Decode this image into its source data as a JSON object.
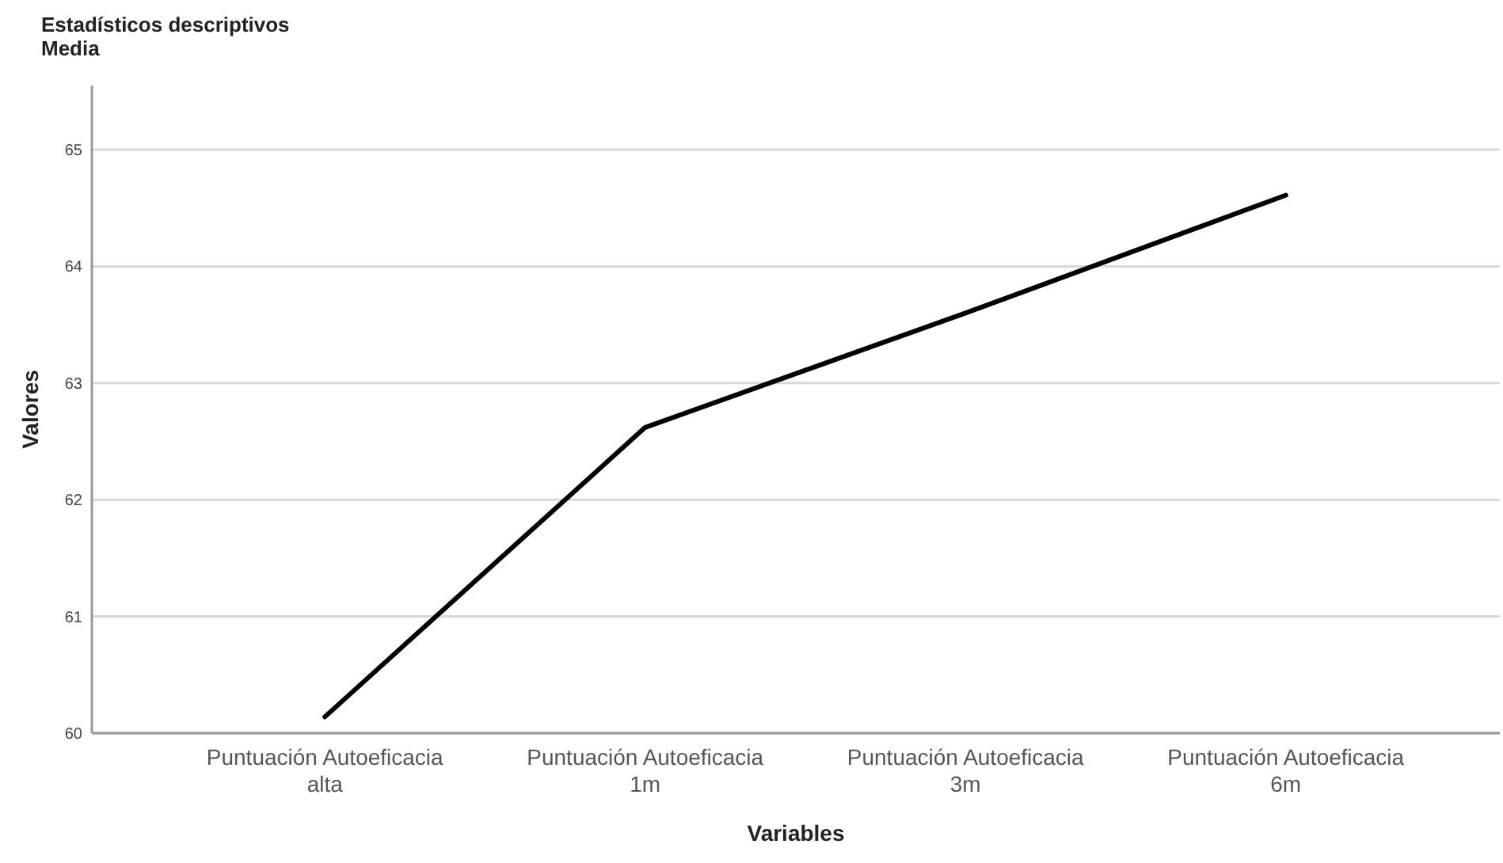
{
  "chart_data": {
    "type": "line",
    "title": "Estadísticos descriptivos",
    "subtitle": "Media",
    "xlabel": "Variables",
    "ylabel": "Valores",
    "categories": [
      "Puntuación Autoeficacia alta",
      "Puntuación Autoeficacia 1m",
      "Puntuación Autoeficacia 3m",
      "Puntuación Autoeficacia 6m"
    ],
    "series": [
      {
        "color": "#000000",
        "values": [
          60.14,
          62.62,
          63.6,
          64.61
        ]
      }
    ],
    "ylim": [
      60,
      65.55
    ],
    "yticks": [
      60,
      61,
      62,
      63,
      64,
      65
    ],
    "grid": "y",
    "marker": "none",
    "line_style": "solid"
  }
}
